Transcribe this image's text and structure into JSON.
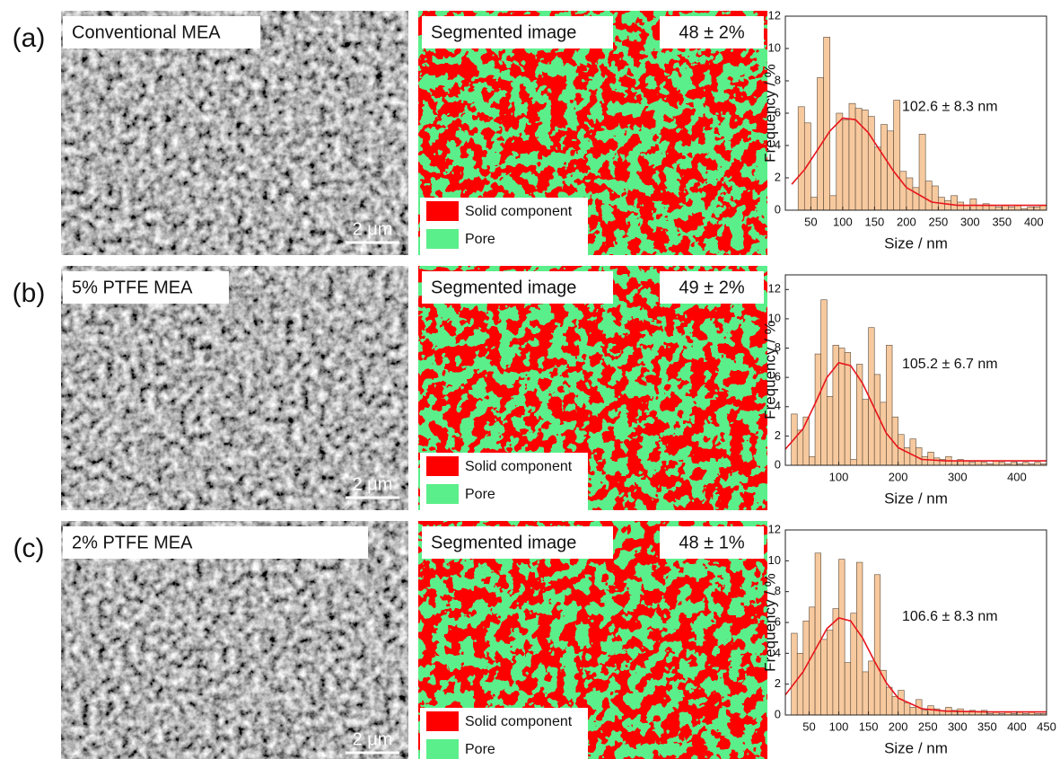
{
  "panels": [
    {
      "label": "(a)",
      "sem_title": "Conventional MEA",
      "scale_bar": "2 μm",
      "seg_title": "Segmented image",
      "porosity": "48 ± 2%",
      "legend_solid": "Solid component",
      "legend_pore": "Pore"
    },
    {
      "label": "(b)",
      "sem_title": "5% PTFE MEA",
      "scale_bar": "2 μm",
      "seg_title": "Segmented image",
      "porosity": "49 ± 2%",
      "legend_solid": "Solid component",
      "legend_pore": "Pore"
    },
    {
      "label": "(c)",
      "sem_title": "2% PTFE MEA",
      "scale_bar": "2 μm",
      "seg_title": "Segmented image",
      "porosity": "48 ± 1%",
      "legend_solid": "Solid component",
      "legend_pore": "Pore"
    }
  ],
  "chart_data": [
    {
      "type": "histogram",
      "xlabel": "Size / nm",
      "ylabel": "Frequency / %",
      "annotation": "102.6 ± 8.3 nm",
      "color": "#f7c99e",
      "edge_color": "#5a4a3a",
      "bins": [
        30,
        40,
        50,
        60,
        70,
        80,
        90,
        100,
        110,
        120,
        130,
        140,
        150,
        160,
        170,
        180,
        190,
        200,
        210,
        220,
        230,
        240,
        250,
        260,
        270,
        280,
        290,
        300,
        310,
        320,
        330,
        340,
        350,
        360,
        370,
        380,
        390,
        400,
        410,
        420
      ],
      "values": [
        6.4,
        5.4,
        0.8,
        8.2,
        10.7,
        0.9,
        6,
        5.6,
        6.6,
        6.3,
        6.2,
        5.8,
        3.9,
        5.3,
        4.9,
        6.8,
        2.4,
        2,
        1.4,
        4.7,
        1.8,
        1.5,
        0.8,
        0.6,
        0.9,
        0.5,
        0.3,
        0.7,
        0.3,
        0.4,
        0.3,
        0.2,
        0.3,
        0.2,
        0.3,
        0.1,
        0.2,
        0.2,
        0.3
      ],
      "fit": {
        "color": "#e8141b",
        "x": [
          20,
          40,
          60,
          80,
          100,
          120,
          140,
          160,
          180,
          200,
          240,
          280,
          320,
          360,
          420
        ],
        "y": [
          1.6,
          2.5,
          3.7,
          4.9,
          5.7,
          5.6,
          4.8,
          3.6,
          2.4,
          1.4,
          0.5,
          0.3,
          0.3,
          0.3,
          0.3
        ]
      },
      "xlim": [
        10,
        420
      ],
      "xticks": [
        50,
        100,
        150,
        200,
        250,
        300,
        350,
        400
      ],
      "ylim": [
        0,
        12
      ],
      "yticks": [
        0,
        2,
        4,
        6,
        8,
        10,
        12
      ]
    },
    {
      "type": "histogram",
      "xlabel": "Size / nm",
      "ylabel": "Frequency / %",
      "annotation": "105.2 ± 6.7 nm",
      "color": "#f7c99e",
      "edge_color": "#5a4a3a",
      "bins": [
        20,
        30,
        40,
        50,
        60,
        70,
        80,
        90,
        100,
        110,
        120,
        130,
        140,
        150,
        160,
        170,
        180,
        190,
        200,
        210,
        220,
        230,
        240,
        250,
        260,
        270,
        280,
        290,
        300,
        310,
        320,
        330,
        340,
        350,
        360,
        370,
        380,
        390,
        400,
        410,
        420,
        430,
        440,
        450
      ],
      "values": [
        3.5,
        2.4,
        3.3,
        0.6,
        7.6,
        11.3,
        4.7,
        8.2,
        8,
        7.7,
        0.4,
        6.9,
        4.5,
        9.4,
        6.2,
        4.3,
        8.2,
        3.3,
        2.1,
        1.2,
        1.8,
        1.2,
        0.6,
        0.9,
        0.5,
        0.4,
        0.6,
        0.3,
        0.4,
        0.3,
        0.2,
        0.3,
        0.2,
        0.1,
        0.3,
        0.2,
        0.1,
        0.2,
        0.1,
        0.2,
        0.1,
        0.2,
        0.1
      ],
      "fit": {
        "color": "#e8141b",
        "x": [
          10,
          40,
          60,
          80,
          100,
          120,
          140,
          160,
          180,
          200,
          240,
          280,
          350,
          450
        ],
        "y": [
          1.1,
          2.5,
          4.2,
          6.0,
          7.0,
          6.8,
          5.6,
          3.9,
          2.2,
          1.2,
          0.4,
          0.3,
          0.3,
          0.3
        ]
      },
      "xlim": [
        10,
        450
      ],
      "xticks": [
        100,
        200,
        300,
        400
      ],
      "ylim": [
        0,
        13
      ],
      "yticks": [
        0,
        2,
        4,
        6,
        8,
        10,
        12
      ]
    },
    {
      "type": "histogram",
      "xlabel": "Size / nm",
      "ylabel": "Frequency / %",
      "annotation": "106.6 ± 8.3 nm",
      "color": "#f7c99e",
      "edge_color": "#5a4a3a",
      "bins": [
        20,
        30,
        40,
        50,
        60,
        70,
        80,
        90,
        100,
        110,
        120,
        130,
        140,
        150,
        160,
        170,
        180,
        190,
        200,
        210,
        220,
        230,
        240,
        250,
        260,
        270,
        280,
        290,
        300,
        310,
        320,
        330,
        340,
        350,
        360,
        370,
        380,
        390,
        400,
        410,
        420,
        430,
        440,
        450
      ],
      "values": [
        5.3,
        4,
        6.1,
        7,
        10.5,
        4.9,
        5.5,
        6.9,
        10.1,
        3.4,
        6.6,
        9.9,
        2.8,
        3.5,
        9.1,
        2.9,
        1.8,
        1.2,
        1.6,
        0.8,
        0.5,
        1,
        0.3,
        0.6,
        0.4,
        0.3,
        0.5,
        0.3,
        0.4,
        0.2,
        0.3,
        0.2,
        0.3,
        0.1,
        0.2,
        0.1,
        0.2,
        0.1,
        0.2,
        0.1,
        0.2,
        0.1,
        0.1
      ],
      "fit": {
        "color": "#e8141b",
        "x": [
          10,
          40,
          60,
          80,
          100,
          120,
          140,
          160,
          180,
          200,
          240,
          280,
          350,
          450
        ],
        "y": [
          1.3,
          2.8,
          4.2,
          5.6,
          6.3,
          6.1,
          5.0,
          3.5,
          2.1,
          1.1,
          0.4,
          0.25,
          0.2,
          0.2
        ]
      },
      "xlim": [
        10,
        450
      ],
      "xticks": [
        50,
        100,
        150,
        200,
        250,
        300,
        350,
        400,
        450
      ],
      "ylim": [
        0,
        12
      ],
      "yticks": [
        0,
        2,
        4,
        6,
        8,
        10,
        12
      ]
    }
  ]
}
